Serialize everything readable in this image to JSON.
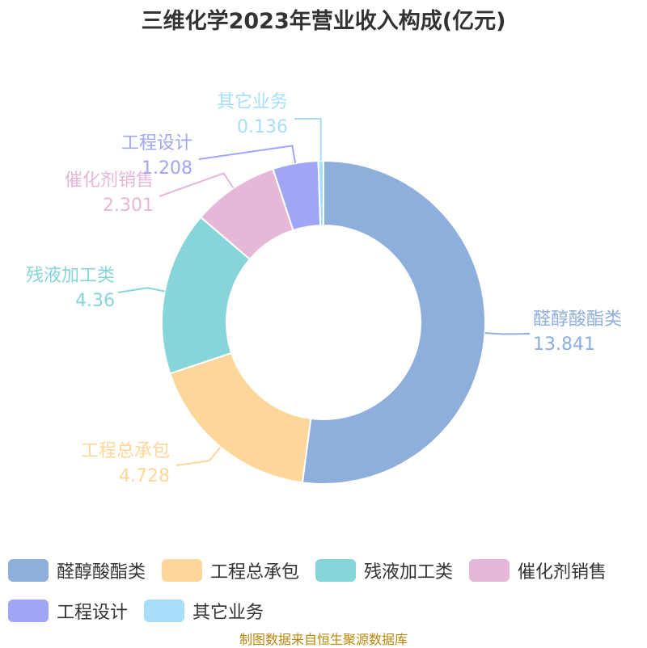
{
  "title": "三维化学2023年营业收入构成(亿元)",
  "source": "制图数据来自恒生聚源数据库",
  "chart_data": {
    "type": "pie",
    "variant": "donut",
    "legend": "bottom",
    "slices": [
      {
        "name": "醛醇酸酯类",
        "value": 13.841,
        "value_label": "13.841",
        "color": "#8eaedb"
      },
      {
        "name": "工程总承包",
        "value": 4.728,
        "value_label": "4.728",
        "color": "#fdd799"
      },
      {
        "name": "残液加工类",
        "value": 4.36,
        "value_label": "4.36",
        "color": "#86d5d8"
      },
      {
        "name": "催化剂销售",
        "value": 2.301,
        "value_label": "2.301",
        "color": "#e6b8d8"
      },
      {
        "name": "工程设计",
        "value": 1.208,
        "value_label": "1.208",
        "color": "#a1a5f5"
      },
      {
        "name": "其它业务",
        "value": 0.136,
        "value_label": "0.136",
        "color": "#a8dff8"
      }
    ]
  }
}
